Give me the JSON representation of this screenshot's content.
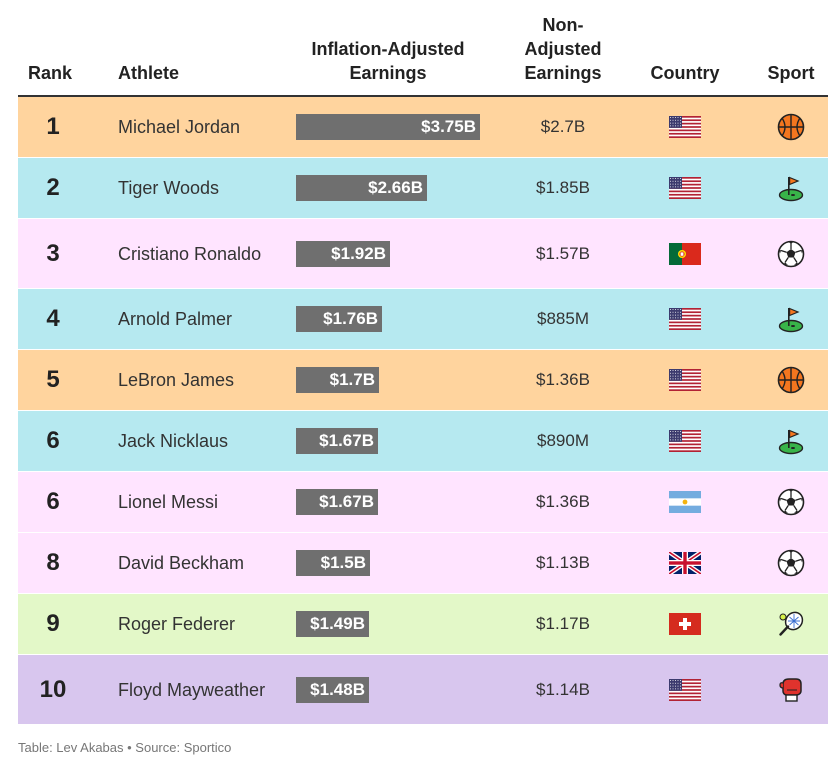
{
  "columns": {
    "rank": "Rank",
    "athlete": "Athlete",
    "inflation_line1": "Inflation-Adjusted",
    "inflation_line2": "Earnings",
    "nonadj_line1": "Non-",
    "nonadj_line2": "Adjusted",
    "nonadj_line3": "Earnings",
    "country": "Country",
    "sport": "Sport"
  },
  "colors": {
    "basketball": "#ffd49e",
    "golf": "#b6e9f0",
    "soccer": "#ffe4ff",
    "tennis": "#e3f8c8",
    "boxing": "#d8c6ee",
    "bar": "#6f6f6f"
  },
  "chart_data": {
    "type": "table",
    "bar_column": "Inflation-Adjusted Earnings",
    "bar_max": 3.75,
    "rows": [
      {
        "rank": "1",
        "athlete": "Michael Jordan",
        "inflation_value": 3.75,
        "inflation_label": "$3.75B",
        "non_adjusted": "$2.7B",
        "country": "usa",
        "sport": "basketball"
      },
      {
        "rank": "2",
        "athlete": "Tiger Woods",
        "inflation_value": 2.66,
        "inflation_label": "$2.66B",
        "non_adjusted": "$1.85B",
        "country": "usa",
        "sport": "golf"
      },
      {
        "rank": "3",
        "athlete": "Cristiano Ronaldo",
        "inflation_value": 1.92,
        "inflation_label": "$1.92B",
        "non_adjusted": "$1.57B",
        "country": "portugal",
        "sport": "soccer"
      },
      {
        "rank": "4",
        "athlete": "Arnold Palmer",
        "inflation_value": 1.76,
        "inflation_label": "$1.76B",
        "non_adjusted": "$885M",
        "country": "usa",
        "sport": "golf"
      },
      {
        "rank": "5",
        "athlete": "LeBron James",
        "inflation_value": 1.7,
        "inflation_label": "$1.7B",
        "non_adjusted": "$1.36B",
        "country": "usa",
        "sport": "basketball"
      },
      {
        "rank": "6",
        "athlete": "Jack Nicklaus",
        "inflation_value": 1.67,
        "inflation_label": "$1.67B",
        "non_adjusted": "$890M",
        "country": "usa",
        "sport": "golf"
      },
      {
        "rank": "6",
        "athlete": "Lionel Messi",
        "inflation_value": 1.67,
        "inflation_label": "$1.67B",
        "non_adjusted": "$1.36B",
        "country": "argentina",
        "sport": "soccer"
      },
      {
        "rank": "8",
        "athlete": "David Beckham",
        "inflation_value": 1.5,
        "inflation_label": "$1.5B",
        "non_adjusted": "$1.13B",
        "country": "uk",
        "sport": "soccer"
      },
      {
        "rank": "9",
        "athlete": "Roger Federer",
        "inflation_value": 1.49,
        "inflation_label": "$1.49B",
        "non_adjusted": "$1.17B",
        "country": "switzerland",
        "sport": "tennis"
      },
      {
        "rank": "10",
        "athlete": "Floyd Mayweather",
        "inflation_value": 1.48,
        "inflation_label": "$1.48B",
        "non_adjusted": "$1.14B",
        "country": "usa",
        "sport": "boxing"
      }
    ]
  },
  "footer": "Table: Lev Akabas • Source: Sportico"
}
